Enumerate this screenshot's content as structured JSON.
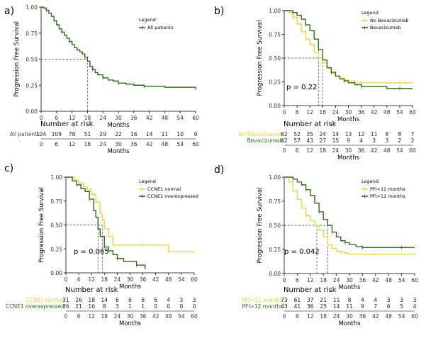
{
  "chart_data": [
    {
      "panel": "a)",
      "type": "line",
      "xlabel": "Months",
      "ylabel": "Progression Free Survival",
      "xlim": [
        0,
        60
      ],
      "ylim": [
        0,
        1
      ],
      "xticks": [
        "0",
        "6",
        "12",
        "18",
        "24",
        "30",
        "36",
        "42",
        "48",
        "54",
        "60"
      ],
      "yticks": [
        "0.00",
        "0.25",
        "0.50",
        "0.75",
        "1.00"
      ],
      "legend_title": "Legend",
      "legend_position": "top-right",
      "median_line": 18,
      "p_value": "",
      "series": [
        {
          "name": "All patients",
          "color": "#2e6b1f",
          "x": [
            0,
            1,
            2,
            3,
            4,
            5,
            6,
            7,
            8,
            9,
            10,
            11,
            12,
            13,
            14,
            15,
            16,
            17,
            18,
            19,
            20,
            21,
            22,
            24,
            26,
            28,
            30,
            33,
            36,
            40,
            48,
            54,
            60
          ],
          "y": [
            1.0,
            0.99,
            0.97,
            0.94,
            0.91,
            0.87,
            0.83,
            0.79,
            0.76,
            0.73,
            0.7,
            0.67,
            0.64,
            0.61,
            0.59,
            0.57,
            0.55,
            0.52,
            0.48,
            0.43,
            0.4,
            0.37,
            0.35,
            0.32,
            0.3,
            0.29,
            0.27,
            0.26,
            0.25,
            0.24,
            0.23,
            0.23,
            0.22
          ]
        }
      ],
      "risk_title": "Number at risk",
      "risk_table": [
        {
          "label": "All patients",
          "color": "#2e6b1f",
          "values": [
            "124",
            "109",
            "78",
            "51",
            "29",
            "22",
            "16",
            "14",
            "11",
            "10",
            "9"
          ]
        }
      ]
    },
    {
      "panel": "b)",
      "type": "line",
      "xlabel": "Months",
      "ylabel": "Progression Free Survival",
      "xlim": [
        0,
        60
      ],
      "ylim": [
        0,
        1
      ],
      "xticks": [
        "0",
        "6",
        "12",
        "18",
        "24",
        "30",
        "36",
        "42",
        "48",
        "54",
        "60"
      ],
      "yticks": [
        "0.00",
        "0.25",
        "0.50",
        "0.75",
        "1.00"
      ],
      "legend_title": "Legend",
      "legend_position": "top-right",
      "median_lines": [
        16,
        18
      ],
      "p_value": "p = 0.22",
      "series": [
        {
          "name": "No Bevacizumab",
          "color": "#f2d23c",
          "x": [
            0,
            2,
            4,
            6,
            8,
            10,
            12,
            14,
            16,
            18,
            20,
            22,
            24,
            26,
            28,
            30,
            33,
            36,
            42,
            48,
            54,
            60
          ],
          "y": [
            1.0,
            0.98,
            0.93,
            0.86,
            0.78,
            0.7,
            0.64,
            0.56,
            0.5,
            0.45,
            0.39,
            0.34,
            0.31,
            0.29,
            0.27,
            0.26,
            0.24,
            0.24,
            0.24,
            0.24,
            0.24,
            0.24
          ]
        },
        {
          "name": "Bevacizumab",
          "color": "#2e6b1f",
          "x": [
            0,
            2,
            4,
            6,
            8,
            10,
            12,
            14,
            16,
            18,
            20,
            22,
            24,
            26,
            28,
            30,
            33,
            36,
            42,
            48,
            54,
            60
          ],
          "y": [
            1.0,
            1.0,
            0.98,
            0.95,
            0.91,
            0.85,
            0.79,
            0.7,
            0.59,
            0.48,
            0.4,
            0.35,
            0.31,
            0.28,
            0.26,
            0.24,
            0.22,
            0.2,
            0.2,
            0.18,
            0.18,
            0.18
          ]
        }
      ],
      "risk_title": "Number at risk",
      "risk_table": [
        {
          "label": "No Bevacizumab",
          "color": "#f2d23c",
          "values": [
            "62",
            "52",
            "35",
            "24",
            "14",
            "13",
            "12",
            "11",
            "8",
            "8",
            "7"
          ]
        },
        {
          "label": "Bevacizumab",
          "color": "#2e6b1f",
          "values": [
            "62",
            "57",
            "43",
            "27",
            "15",
            "9",
            "4",
            "3",
            "3",
            "2",
            "2"
          ]
        }
      ]
    },
    {
      "panel": "c)",
      "type": "line",
      "xlabel": "Months",
      "ylabel": "Progression Free Survival",
      "xlim": [
        0,
        60
      ],
      "ylim": [
        0,
        1
      ],
      "xticks": [
        "0",
        "6",
        "12",
        "18",
        "24",
        "30",
        "36",
        "42",
        "48",
        "54",
        "60"
      ],
      "yticks": [
        "0.00",
        "0.25",
        "0.50",
        "0.75",
        "1.00"
      ],
      "legend_title": "Legend",
      "legend_position": "top-right",
      "median_lines": [
        15,
        17
      ],
      "p_value": "p = 0.065",
      "series": [
        {
          "name": "CCNE1 normal",
          "color": "#f2d23c",
          "x": [
            0,
            4,
            6,
            8,
            10,
            12,
            14,
            16,
            17,
            18,
            20,
            22,
            24,
            30,
            36,
            42,
            46,
            48,
            54,
            60
          ],
          "y": [
            1.0,
            0.97,
            0.94,
            0.9,
            0.87,
            0.82,
            0.74,
            0.62,
            0.55,
            0.46,
            0.38,
            0.29,
            0.29,
            0.29,
            0.29,
            0.29,
            0.29,
            0.22,
            0.22,
            0.22
          ]
        },
        {
          "name": "CCNE1 overexpressed",
          "color": "#2e6b1f",
          "x": [
            0,
            3,
            5,
            7,
            9,
            11,
            13,
            14,
            15,
            16,
            17,
            18,
            20,
            22,
            24,
            27,
            30,
            33,
            36,
            37
          ],
          "y": [
            1.0,
            0.96,
            0.92,
            0.88,
            0.85,
            0.77,
            0.65,
            0.58,
            0.46,
            0.38,
            0.38,
            0.27,
            0.23,
            0.19,
            0.15,
            0.12,
            0.12,
            0.08,
            0.08,
            0.04
          ]
        }
      ],
      "risk_title": "Number at risk",
      "risk_table": [
        {
          "label": "CCNE1 normal",
          "color": "#f2d23c",
          "values": [
            "31",
            "26",
            "18",
            "14",
            "6",
            "6",
            "6",
            "6",
            "4",
            "3",
            "3"
          ]
        },
        {
          "label": "CCNE1 overexpressed",
          "color": "#2e6b1f",
          "values": [
            "26",
            "21",
            "16",
            "8",
            "3",
            "1",
            "1",
            "0",
            "0",
            "0",
            "0"
          ]
        }
      ]
    },
    {
      "panel": "d)",
      "type": "line",
      "xlabel": "Months",
      "ylabel": "Progression Free Survival",
      "xlim": [
        0,
        60
      ],
      "ylim": [
        0,
        1
      ],
      "xticks": [
        "0",
        "6",
        "12",
        "18",
        "24",
        "30",
        "36",
        "42",
        "48",
        "54",
        "60"
      ],
      "yticks": [
        "0.00",
        "0.25",
        "0.50",
        "0.75",
        "1.00"
      ],
      "legend_title": "Legend",
      "legend_position": "top-right",
      "median_lines": [
        15,
        20
      ],
      "p_value": "p = 0.042",
      "series": [
        {
          "name": "PFI<12 months",
          "color": "#f2d23c",
          "x": [
            0,
            2,
            4,
            6,
            8,
            10,
            12,
            14,
            16,
            18,
            20,
            22,
            24,
            26,
            28,
            30,
            36,
            42,
            48,
            54,
            60
          ],
          "y": [
            1.0,
            0.95,
            0.86,
            0.77,
            0.68,
            0.6,
            0.55,
            0.5,
            0.45,
            0.38,
            0.3,
            0.26,
            0.23,
            0.22,
            0.21,
            0.2,
            0.2,
            0.2,
            0.2,
            0.2,
            0.2
          ]
        },
        {
          "name": "PFI>12 months",
          "color": "#2e6b1f",
          "x": [
            0,
            2,
            4,
            6,
            8,
            10,
            12,
            14,
            16,
            18,
            20,
            22,
            24,
            26,
            28,
            30,
            33,
            36,
            42,
            48,
            54,
            60
          ],
          "y": [
            1.0,
            1.0,
            0.98,
            0.95,
            0.92,
            0.87,
            0.81,
            0.73,
            0.64,
            0.56,
            0.5,
            0.43,
            0.38,
            0.34,
            0.32,
            0.3,
            0.28,
            0.27,
            0.27,
            0.27,
            0.27,
            0.27
          ]
        }
      ],
      "risk_title": "Number at risk",
      "risk_table": [
        {
          "label": "PFI<12 months",
          "color": "#f2d23c",
          "values": [
            "73",
            "61",
            "37",
            "21",
            "11",
            "8",
            "4",
            "4",
            "3",
            "3",
            "3"
          ]
        },
        {
          "label": "PFI>12 months",
          "color": "#2e6b1f",
          "values": [
            "43",
            "41",
            "36",
            "25",
            "14",
            "11",
            "9",
            "7",
            "6",
            "5",
            "4"
          ]
        }
      ]
    }
  ]
}
